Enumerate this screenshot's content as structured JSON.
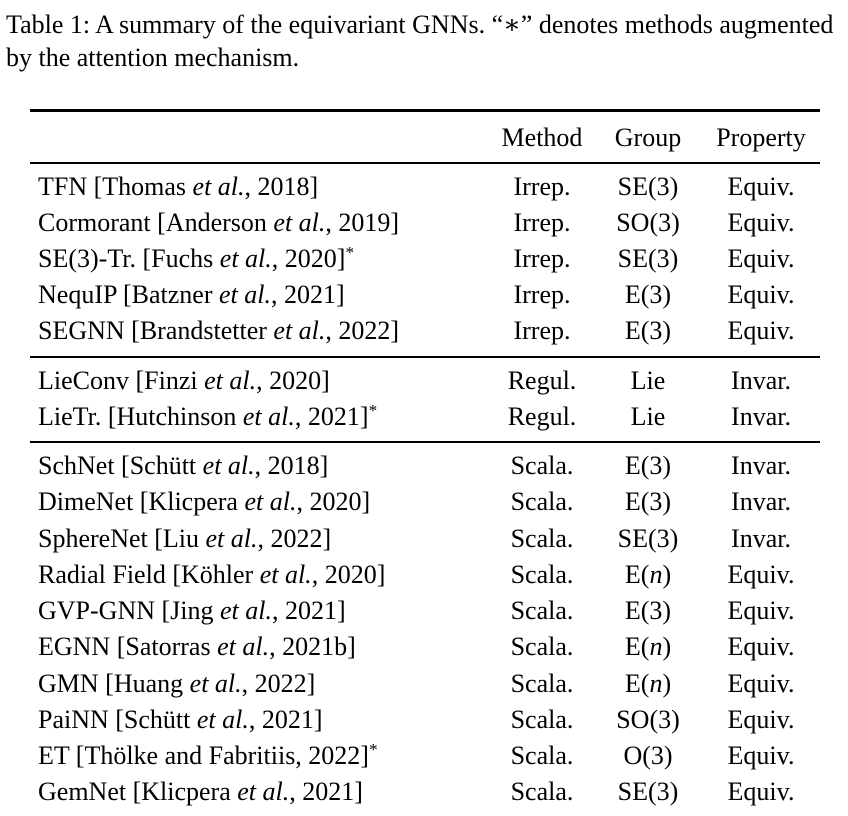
{
  "caption": "Table 1: A summary of the equivariant GNNs. “∗” denotes methods augmented by the attention mechanism.",
  "colors": {
    "text": "#000000",
    "background": "#ffffff",
    "rule": "#000000"
  },
  "table": {
    "columns": [
      "Method",
      "Group",
      "Property"
    ],
    "sections": [
      {
        "rows": [
          {
            "name": "TFN [Thomas et al., 2018]",
            "method": "Irrep.",
            "group": "SE(3)",
            "property": "Equiv."
          },
          {
            "name": "Cormorant [Anderson et al., 2019]",
            "method": "Irrep.",
            "group": "SO(3)",
            "property": "Equiv."
          },
          {
            "name": "SE(3)-Tr. [Fuchs et al., 2020]*",
            "method": "Irrep.",
            "group": "SE(3)",
            "property": "Equiv."
          },
          {
            "name": "NequIP [Batzner et al., 2021]",
            "method": "Irrep.",
            "group": "E(3)",
            "property": "Equiv."
          },
          {
            "name": "SEGNN [Brandstetter et al., 2022]",
            "method": "Irrep.",
            "group": "E(3)",
            "property": "Equiv."
          }
        ]
      },
      {
        "rows": [
          {
            "name": "LieConv [Finzi et al., 2020]",
            "method": "Regul.",
            "group": "Lie",
            "property": "Invar."
          },
          {
            "name": "LieTr. [Hutchinson et al., 2021]*",
            "method": "Regul.",
            "group": "Lie",
            "property": "Invar."
          }
        ]
      },
      {
        "rows": [
          {
            "name": "SchNet [Schütt et al., 2018]",
            "method": "Scala.",
            "group": "E(3)",
            "property": "Invar."
          },
          {
            "name": "DimeNet [Klicpera et al., 2020]",
            "method": "Scala.",
            "group": "E(3)",
            "property": "Invar."
          },
          {
            "name": "SphereNet [Liu et al., 2022]",
            "method": "Scala.",
            "group": "SE(3)",
            "property": "Invar."
          },
          {
            "name": "Radial Field [Köhler et al., 2020]",
            "method": "Scala.",
            "group": "E(n)",
            "property": "Equiv."
          },
          {
            "name": "GVP-GNN [Jing et al., 2021]",
            "method": "Scala.",
            "group": "E(3)",
            "property": "Equiv."
          },
          {
            "name": "EGNN [Satorras et al., 2021b]",
            "method": "Scala.",
            "group": "E(n)",
            "property": "Equiv."
          },
          {
            "name": "GMN [Huang et al., 2022]",
            "method": "Scala.",
            "group": "E(n)",
            "property": "Equiv."
          },
          {
            "name": "PaiNN [Schütt et al., 2021]",
            "method": "Scala.",
            "group": "SO(3)",
            "property": "Equiv."
          },
          {
            "name": "ET [Thölke and Fabritiis, 2022]*",
            "method": "Scala.",
            "group": "O(3)",
            "property": "Equiv."
          },
          {
            "name": "GemNet [Klicpera et al., 2021]",
            "method": "Scala.",
            "group": "SE(3)",
            "property": "Equiv."
          }
        ]
      }
    ]
  }
}
